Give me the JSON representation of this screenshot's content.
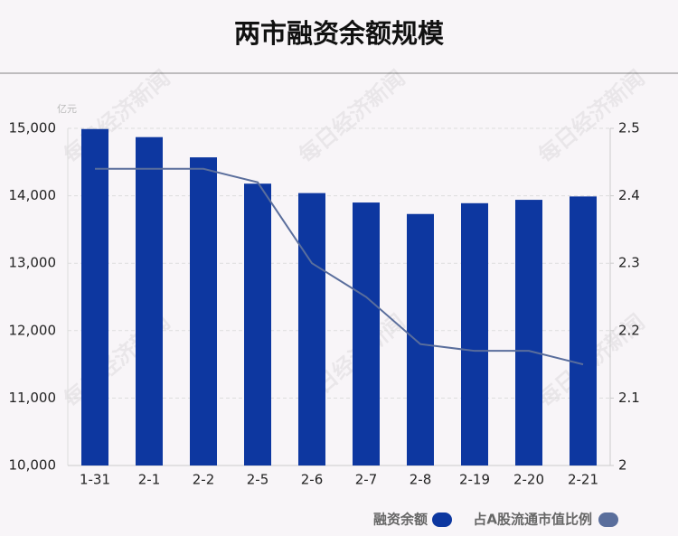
{
  "chart_data": {
    "type": "bar",
    "title": "两市融资余额规模",
    "unit_label": "亿元",
    "watermark": "每日经济新闻",
    "categories": [
      "1-31",
      "2-1",
      "2-2",
      "2-5",
      "2-6",
      "2-7",
      "2-8",
      "2-19",
      "2-20",
      "2-21"
    ],
    "series": [
      {
        "name": "融资余额",
        "color": "#0d37a0",
        "type": "bar",
        "values": [
          14990,
          14870,
          14570,
          14180,
          14040,
          13900,
          13730,
          13890,
          13940,
          13990
        ]
      },
      {
        "name": "占A股流通市值比例",
        "color": "#5a6e9c",
        "type": "line",
        "axis": "y2",
        "values": [
          2.44,
          2.44,
          2.44,
          2.42,
          2.3,
          2.25,
          2.18,
          2.17,
          2.17,
          2.15
        ]
      }
    ],
    "ylim": [
      10000,
      15000
    ],
    "yticks": [
      {
        "value": 10000,
        "label": "10,000"
      },
      {
        "value": 11000,
        "label": "11,000"
      },
      {
        "value": 12000,
        "label": "12,000"
      },
      {
        "value": 13000,
        "label": "13,000"
      },
      {
        "value": 14000,
        "label": "14,000"
      },
      {
        "value": 15000,
        "label": "15,000"
      }
    ],
    "y2lim": [
      2,
      2.5
    ],
    "y2ticks": [
      2,
      2.1,
      2.2,
      2.3,
      2.4,
      2.5
    ],
    "grid": true
  }
}
